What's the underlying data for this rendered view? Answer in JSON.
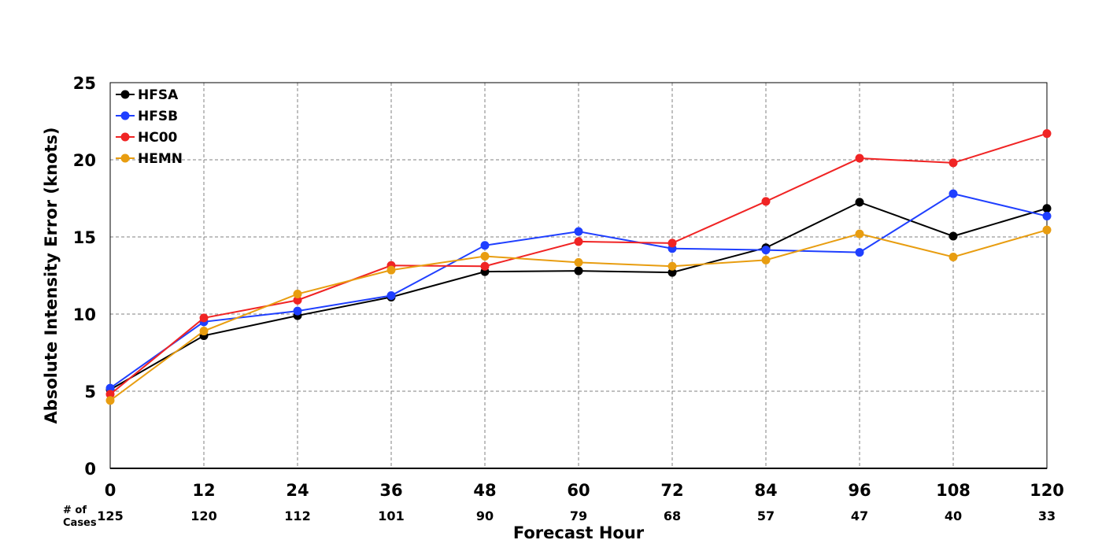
{
  "chart_data": {
    "type": "line",
    "title": "",
    "xlabel": "Forecast Hour",
    "ylabel": "Absolute Intensity Error (knots)",
    "xlim": [
      0,
      120
    ],
    "ylim": [
      0,
      25
    ],
    "x": [
      0,
      12,
      24,
      36,
      48,
      60,
      72,
      84,
      96,
      108,
      120
    ],
    "yticks": [
      0,
      5,
      10,
      15,
      20,
      25
    ],
    "grid": true,
    "legend_position": "top-left",
    "cases_label_line1": "# of",
    "cases_label_line2": "Cases",
    "cases": [
      125,
      120,
      112,
      101,
      90,
      79,
      68,
      57,
      47,
      40,
      33
    ],
    "series": [
      {
        "name": "HFSA",
        "color": "#000000",
        "values": [
          5.1,
          8.6,
          9.9,
          11.1,
          12.75,
          12.8,
          12.7,
          14.3,
          17.25,
          15.05,
          16.85
        ]
      },
      {
        "name": "HFSB",
        "color": "#1f3fff",
        "values": [
          5.2,
          9.5,
          10.2,
          11.2,
          14.45,
          15.35,
          14.25,
          14.15,
          14.0,
          17.8,
          16.35
        ]
      },
      {
        "name": "HC00",
        "color": "#f02424",
        "values": [
          4.8,
          9.75,
          10.9,
          13.15,
          13.1,
          14.7,
          14.6,
          17.3,
          20.1,
          19.8,
          21.7
        ]
      },
      {
        "name": "HEMN",
        "color": "#e89d10",
        "values": [
          4.4,
          8.9,
          11.3,
          12.85,
          13.75,
          13.35,
          13.1,
          13.5,
          15.2,
          13.7,
          15.45
        ]
      }
    ]
  }
}
